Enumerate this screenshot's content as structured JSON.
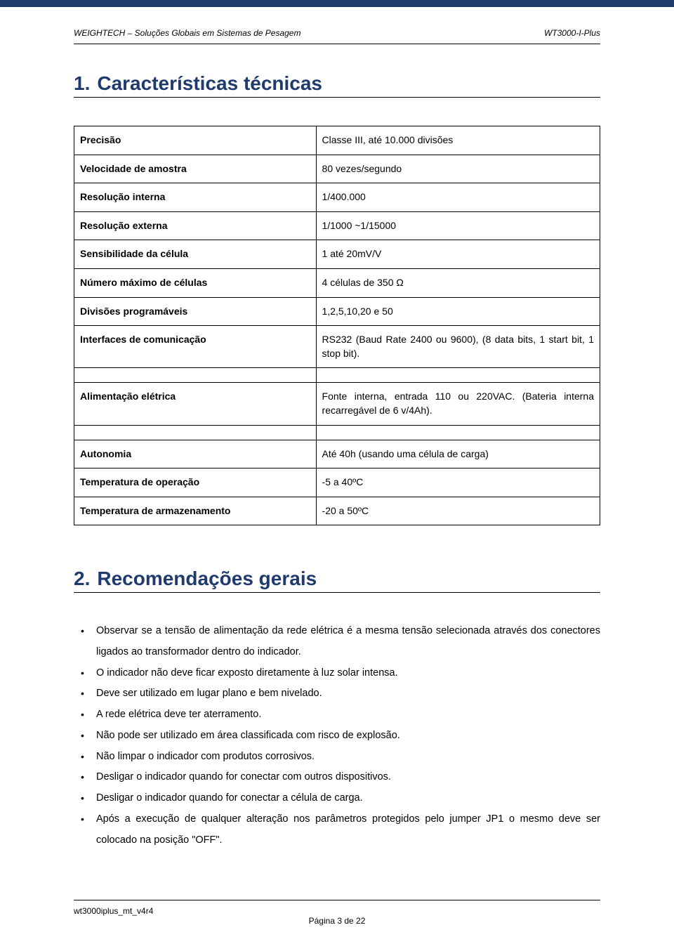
{
  "header": {
    "left": "WEIGHTECH – Soluções Globais em Sistemas de Pesagem",
    "right": "WT3000-I-Plus"
  },
  "section1": {
    "number": "1.",
    "title": "Características técnicas"
  },
  "specs": {
    "rows": [
      {
        "label": "Precisão",
        "value": "Classe III, até 10.000 divisões"
      },
      {
        "label": "Velocidade de amostra",
        "value": "80 vezes/segundo"
      },
      {
        "label": "Resolução interna",
        "value": "1/400.000"
      },
      {
        "label": "Resolução externa",
        "value": "1/1000 ~1/15000"
      },
      {
        "label": "Sensibilidade da célula",
        "value": "1 até 20mV/V"
      },
      {
        "label": "Número máximo de células",
        "value": "4 células de 350 Ω"
      },
      {
        "label": "Divisões programáveis",
        "value": "1,2,5,10,20 e 50"
      },
      {
        "label": "Interfaces de comunicação",
        "value": "RS232 (Baud Rate 2400 ou 9600), (8 data bits, 1 start bit, 1 stop bit)."
      },
      {
        "label": "Alimentação elétrica",
        "value": "Fonte interna, entrada 110 ou 220VAC. (Bateria interna recarregável de 6 v/4Ah)."
      },
      {
        "label": "Autonomia",
        "value": "Até 40h (usando uma célula de carga)"
      },
      {
        "label": "Temperatura de operação",
        "value": "-5 a 40ºC"
      },
      {
        "label": "Temperatura de armazenamento",
        "value": "-20 a 50ºC"
      }
    ]
  },
  "section2": {
    "number": "2.",
    "title": "Recomendações gerais"
  },
  "bullets": [
    "Observar se a tensão de alimentação da rede elétrica é a mesma tensão selecionada através dos conectores ligados ao transformador dentro do indicador.",
    "O indicador não deve ficar exposto diretamente à luz solar intensa.",
    "Deve ser utilizado em lugar plano e bem nivelado.",
    "A rede elétrica deve ter aterramento.",
    "Não pode ser utilizado em área classificada com risco de explosão.",
    "Não limpar o indicador com produtos corrosivos.",
    "Desligar o indicador quando for conectar com outros dispositivos.",
    "Desligar o indicador quando for conectar a célula de carga.",
    "Após a execução de qualquer alteração nos parâmetros protegidos pelo jumper JP1 o mesmo deve ser colocado na posição \"OFF\"."
  ],
  "footer": {
    "left": "wt3000iplus_mt_v4r4",
    "center": "Página 3 de 22"
  },
  "colors": {
    "brand": "#1f3b6e",
    "text": "#000000",
    "background": "#ffffff"
  }
}
